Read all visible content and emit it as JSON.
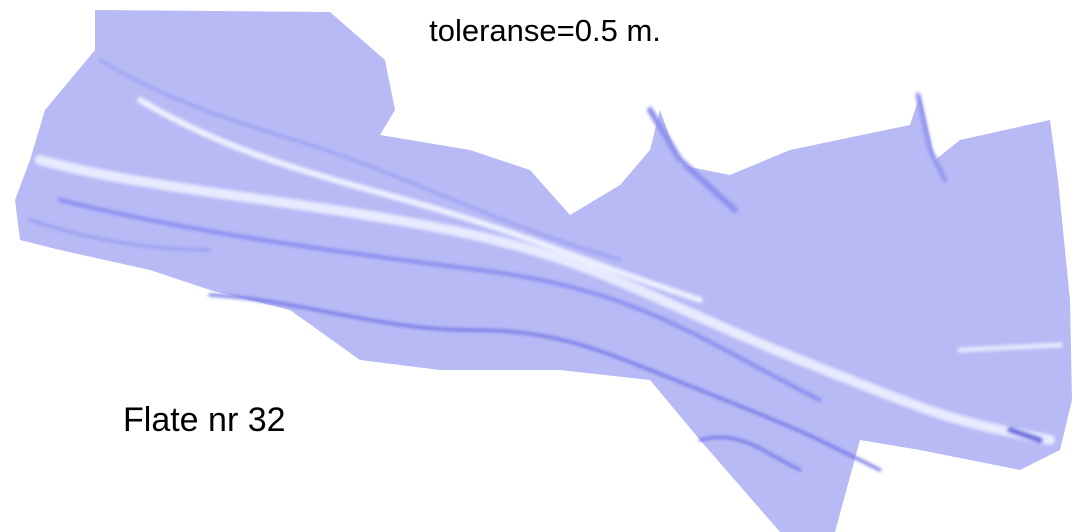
{
  "title": "toleranse=0.5 m.",
  "label": "Flate nr 32"
}
